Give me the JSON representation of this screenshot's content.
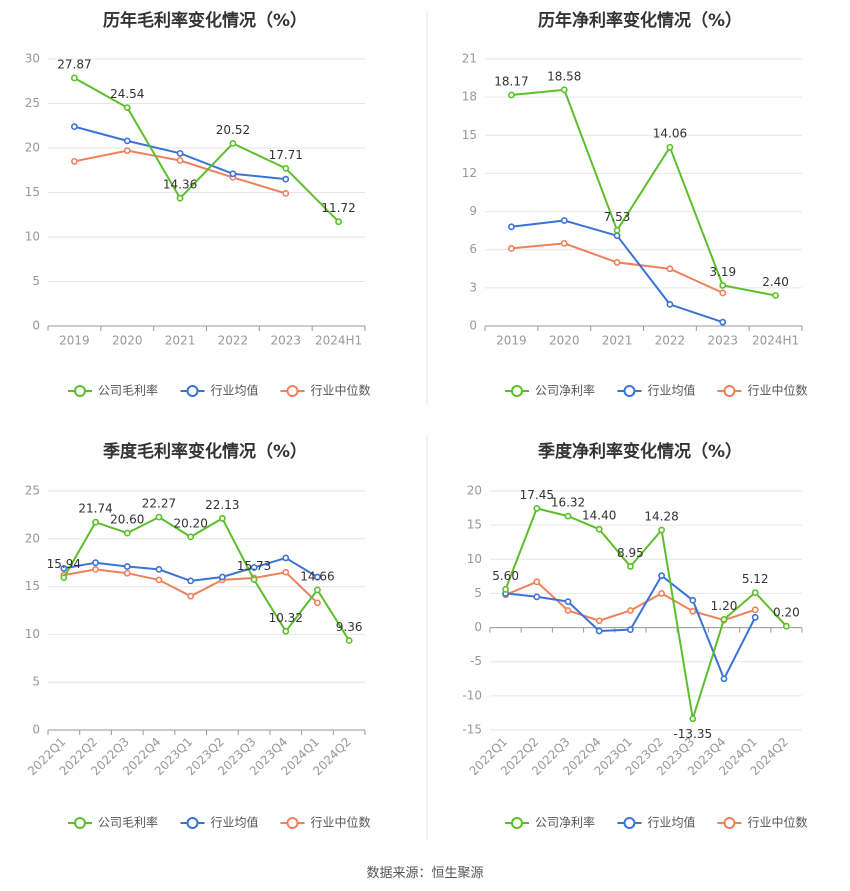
{
  "colors": {
    "company": "#5cbf2a",
    "industry_avg": "#3a72d8",
    "industry_median": "#f0805a",
    "grid": "#e6e6e6",
    "axis_text": "#999999",
    "divider": "#e8e8e8"
  },
  "legend": {
    "company_gross": "公司毛利率",
    "company_net": "公司净利率",
    "industry_avg": "行业均值",
    "industry_median": "行业中位数"
  },
  "source_text": "数据来源：恒生聚源",
  "chart_data": [
    {
      "id": "annual-gross",
      "type": "line",
      "title": "历年毛利率变化情况（%）",
      "categories": [
        "2019",
        "2020",
        "2021",
        "2022",
        "2023",
        "2024H1"
      ],
      "ylim": [
        0,
        30
      ],
      "yticks": [
        0,
        5,
        10,
        15,
        20,
        25,
        30
      ],
      "legend_key": "company_gross",
      "label_placement": "above",
      "series": [
        {
          "name": "公司毛利率",
          "key": "company",
          "values": [
            27.87,
            24.54,
            14.36,
            20.52,
            17.71,
            11.72
          ],
          "labels": [
            "27.87",
            "24.54",
            "14.36",
            "20.52",
            "17.71",
            "11.72"
          ]
        },
        {
          "name": "行业均值",
          "key": "industry_avg",
          "values": [
            22.4,
            20.8,
            19.4,
            17.1,
            16.5,
            null
          ]
        },
        {
          "name": "行业中位数",
          "key": "industry_median",
          "values": [
            18.5,
            19.7,
            18.6,
            16.7,
            14.9,
            null
          ]
        }
      ]
    },
    {
      "id": "annual-net",
      "type": "line",
      "title": "历年净利率变化情况（%）",
      "categories": [
        "2019",
        "2020",
        "2021",
        "2022",
        "2023",
        "2024H1"
      ],
      "ylim": [
        0,
        21
      ],
      "yticks": [
        0,
        3,
        6,
        9,
        12,
        15,
        18,
        21
      ],
      "legend_key": "company_net",
      "label_placement": "above",
      "series": [
        {
          "name": "公司净利率",
          "key": "company",
          "values": [
            18.17,
            18.58,
            7.53,
            14.06,
            3.19,
            2.4
          ],
          "labels": [
            "18.17",
            "18.58",
            "7.53",
            "14.06",
            "3.19",
            "2.40"
          ]
        },
        {
          "name": "行业均值",
          "key": "industry_avg",
          "values": [
            7.8,
            8.3,
            7.1,
            1.7,
            0.3,
            null
          ]
        },
        {
          "name": "行业中位数",
          "key": "industry_median",
          "values": [
            6.1,
            6.5,
            5.0,
            4.5,
            2.6,
            null
          ]
        }
      ]
    },
    {
      "id": "quarterly-gross",
      "type": "line",
      "title": "季度毛利率变化情况（%）",
      "categories": [
        "2022Q1",
        "2022Q2",
        "2022Q3",
        "2022Q4",
        "2023Q1",
        "2023Q2",
        "2023Q3",
        "2023Q4",
        "2024Q1",
        "2024Q2"
      ],
      "ylim": [
        0,
        25
      ],
      "yticks": [
        0,
        5,
        10,
        15,
        20,
        25
      ],
      "legend_key": "company_gross",
      "rotate_x": true,
      "label_placement": "above",
      "series": [
        {
          "name": "公司毛利率",
          "key": "company",
          "values": [
            15.94,
            21.74,
            20.6,
            22.27,
            20.2,
            22.13,
            15.73,
            10.32,
            14.66,
            9.36
          ],
          "labels": [
            "15.94",
            "21.74",
            "20.60",
            "22.27",
            "20.20",
            "22.13",
            "15.73",
            "10.32",
            "14.66",
            "9.36"
          ]
        },
        {
          "name": "行业均值",
          "key": "industry_avg",
          "values": [
            16.9,
            17.5,
            17.1,
            16.8,
            15.6,
            16.0,
            17.0,
            18.0,
            16.0,
            null
          ]
        },
        {
          "name": "行业中位数",
          "key": "industry_median",
          "values": [
            16.2,
            16.8,
            16.4,
            15.7,
            14.0,
            15.7,
            15.9,
            16.5,
            13.3,
            null
          ]
        }
      ]
    },
    {
      "id": "quarterly-net",
      "type": "line",
      "title": "季度净利率变化情况（%）",
      "categories": [
        "2022Q1",
        "2022Q2",
        "2022Q3",
        "2022Q4",
        "2023Q1",
        "2023Q2",
        "2023Q3",
        "2023Q4",
        "2024Q1",
        "2024Q2"
      ],
      "ylim": [
        -15,
        20
      ],
      "yticks": [
        -15,
        -10,
        -5,
        0,
        5,
        10,
        15,
        20
      ],
      "legend_key": "company_net",
      "rotate_x": true,
      "label_placement": "auto",
      "series": [
        {
          "name": "公司净利率",
          "key": "company",
          "values": [
            5.6,
            17.45,
            16.32,
            14.4,
            8.95,
            14.28,
            -13.35,
            1.2,
            5.12,
            0.2
          ],
          "labels": [
            "5.60",
            "17.45",
            "16.32",
            "14.40",
            "8.95",
            "14.28",
            "-13.35",
            "1.20",
            "5.12",
            "0.20"
          ]
        },
        {
          "name": "行业均值",
          "key": "industry_avg",
          "values": [
            5.0,
            4.5,
            3.8,
            -0.5,
            -0.3,
            7.6,
            4.0,
            -7.5,
            1.5,
            null
          ]
        },
        {
          "name": "行业中位数",
          "key": "industry_median",
          "values": [
            4.8,
            6.7,
            2.5,
            1.0,
            2.5,
            5.0,
            2.4,
            1.1,
            2.6,
            null
          ]
        }
      ]
    }
  ]
}
